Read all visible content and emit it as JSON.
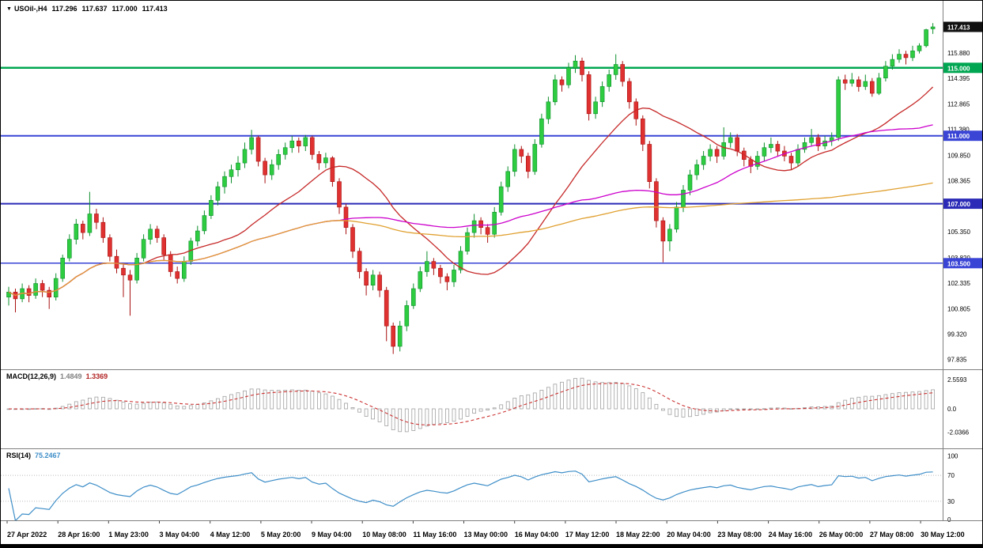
{
  "header": {
    "marker": "▼",
    "symbol_period": "USOil-,H4",
    "open": "117.296",
    "high": "117.637",
    "low": "117.000",
    "close": "117.413"
  },
  "colors": {
    "background": "#FFFFFF",
    "border": "#000000",
    "panel_divider": "#808080",
    "candle_up": "#2ECC40",
    "candle_up_edge": "#0E8F2E",
    "candle_down": "#E03131",
    "candle_down_edge": "#A81010",
    "ma_fast": "#C62828",
    "ma_medium": "#CC00CC",
    "ma_slow": "#E0A030",
    "macd_hist": "#A0A0A0",
    "macd_signal": "#CC3333",
    "rsi_line": "#3E8EC8",
    "rsi_level": "#BBBBBB",
    "axis_text": "#000000",
    "time_text": "#000000",
    "bottom_strip": "#000000"
  },
  "chart_data": [
    {
      "id": "price",
      "type": "candlestick",
      "symbol": "USOil-",
      "timeframe": "H4",
      "y_range": [
        97.435,
        118.95
      ],
      "grid": false,
      "hlines": [
        {
          "value": 115.0,
          "color": "#00A651",
          "width": 2.5
        },
        {
          "value": 111.0,
          "color": "#3A45D6",
          "width": 2
        },
        {
          "value": 107.0,
          "color": "#2B2BB8",
          "width": 2
        },
        {
          "value": 103.5,
          "color": "#3A45D6",
          "width": 1.5
        }
      ],
      "badges": [
        {
          "text": "117.413",
          "value": 117.413,
          "bg": "#111111"
        },
        {
          "text": "115.000",
          "value": 115.0,
          "bg": "#00A651"
        },
        {
          "text": "111.000",
          "value": 111.0,
          "bg": "#3A45D6"
        },
        {
          "text": "107.000",
          "value": 107.0,
          "bg": "#2B2BB8"
        },
        {
          "text": "103.500",
          "value": 103.5,
          "bg": "#3A45D6"
        }
      ],
      "axis_labels": [
        {
          "text": "115.880",
          "value": 115.88
        },
        {
          "text": "114.395",
          "value": 114.395
        },
        {
          "text": "112.865",
          "value": 112.865
        },
        {
          "text": "111.380",
          "value": 111.38
        },
        {
          "text": "109.850",
          "value": 109.85
        },
        {
          "text": "108.365",
          "value": 108.365
        },
        {
          "text": "105.350",
          "value": 105.35
        },
        {
          "text": "103.820",
          "value": 103.82
        },
        {
          "text": "102.335",
          "value": 102.335
        },
        {
          "text": "100.805",
          "value": 100.805
        },
        {
          "text": "99.320",
          "value": 99.32
        },
        {
          "text": "97.835",
          "value": 97.835
        }
      ],
      "moving_averages": [
        {
          "name": "ma-fast",
          "period": 21,
          "color": "#C62828"
        },
        {
          "name": "ma-medium",
          "period": 50,
          "color": "#CC00CC"
        },
        {
          "name": "ma-slow",
          "period": 200,
          "color": "#E0A030"
        }
      ],
      "x_labels": [
        "27 Apr 2022",
        "28 Apr 16:00",
        "1 May 23:00",
        "3 May 04:00",
        "4 May 12:00",
        "5 May 20:00",
        "9 May 04:00",
        "10 May 08:00",
        "11 May 16:00",
        "13 May 00:00",
        "16 May 04:00",
        "17 May 12:00",
        "18 May 22:00",
        "20 May 04:00",
        "23 May 08:00",
        "24 May 16:00",
        "26 May 00:00",
        "27 May 08:00",
        "30 May 12:00"
      ],
      "candles": [
        [
          101.5,
          102.1,
          101.0,
          101.8
        ],
        [
          101.8,
          102.0,
          100.6,
          101.4
        ],
        [
          101.4,
          102.3,
          101.2,
          102.0
        ],
        [
          102.0,
          102.2,
          101.2,
          101.6
        ],
        [
          101.6,
          102.6,
          101.4,
          102.3
        ],
        [
          102.3,
          102.5,
          101.5,
          101.9
        ],
        [
          101.9,
          102.1,
          100.8,
          101.5
        ],
        [
          101.5,
          102.9,
          101.3,
          102.6
        ],
        [
          102.6,
          104.0,
          102.4,
          103.8
        ],
        [
          103.8,
          105.2,
          103.6,
          104.9
        ],
        [
          104.9,
          106.1,
          104.6,
          105.8
        ],
        [
          105.8,
          106.0,
          104.9,
          105.3
        ],
        [
          105.3,
          107.7,
          105.1,
          106.4
        ],
        [
          106.4,
          106.7,
          105.5,
          105.9
        ],
        [
          105.9,
          106.2,
          104.7,
          105.0
        ],
        [
          105.0,
          105.2,
          103.6,
          103.9
        ],
        [
          103.9,
          104.3,
          102.9,
          103.2
        ],
        [
          103.2,
          103.5,
          101.5,
          102.8
        ],
        [
          102.8,
          103.1,
          100.4,
          102.5
        ],
        [
          102.5,
          104.1,
          102.3,
          103.8
        ],
        [
          103.8,
          105.2,
          103.6,
          104.9
        ],
        [
          104.9,
          105.8,
          104.6,
          105.5
        ],
        [
          105.5,
          105.7,
          104.7,
          105.0
        ],
        [
          105.0,
          105.2,
          103.7,
          104.0
        ],
        [
          104.0,
          104.2,
          102.7,
          103.0
        ],
        [
          103.0,
          103.3,
          102.3,
          102.6
        ],
        [
          102.6,
          103.9,
          102.4,
          103.6
        ],
        [
          103.6,
          105.0,
          103.4,
          104.8
        ],
        [
          104.8,
          105.7,
          104.5,
          105.4
        ],
        [
          105.4,
          106.6,
          105.2,
          106.3
        ],
        [
          106.3,
          107.5,
          106.1,
          107.2
        ],
        [
          107.2,
          108.3,
          106.9,
          108.0
        ],
        [
          108.0,
          108.9,
          107.6,
          108.6
        ],
        [
          108.6,
          109.3,
          108.2,
          109.0
        ],
        [
          109.0,
          109.8,
          108.6,
          109.4
        ],
        [
          109.4,
          110.6,
          109.1,
          110.2
        ],
        [
          110.2,
          111.35,
          109.9,
          110.9
        ],
        [
          110.9,
          111.0,
          109.2,
          109.5
        ],
        [
          109.5,
          109.7,
          108.2,
          108.7
        ],
        [
          108.7,
          109.6,
          108.4,
          109.3
        ],
        [
          109.3,
          110.2,
          109.0,
          109.9
        ],
        [
          109.9,
          110.6,
          109.6,
          110.3
        ],
        [
          110.3,
          111.0,
          110.0,
          110.7
        ],
        [
          110.7,
          110.9,
          110.0,
          110.4
        ],
        [
          110.4,
          111.05,
          110.1,
          110.9
        ],
        [
          110.9,
          111.0,
          109.6,
          109.9
        ],
        [
          109.9,
          110.1,
          109.0,
          109.4
        ],
        [
          109.4,
          110.0,
          109.1,
          109.7
        ],
        [
          109.7,
          109.8,
          108.0,
          108.3
        ],
        [
          108.3,
          108.5,
          106.4,
          106.8
        ],
        [
          106.8,
          107.0,
          105.2,
          105.6
        ],
        [
          105.6,
          105.8,
          103.8,
          104.2
        ],
        [
          104.2,
          104.4,
          102.6,
          103.0
        ],
        [
          103.0,
          103.2,
          101.6,
          102.2
        ],
        [
          102.2,
          103.1,
          101.9,
          102.8
        ],
        [
          102.8,
          103.0,
          101.5,
          101.9
        ],
        [
          101.9,
          102.1,
          98.9,
          99.8
        ],
        [
          99.8,
          100.0,
          98.15,
          98.6
        ],
        [
          98.6,
          100.1,
          98.3,
          99.8
        ],
        [
          99.8,
          101.3,
          99.5,
          101.0
        ],
        [
          101.0,
          102.3,
          100.8,
          102.0
        ],
        [
          102.0,
          103.3,
          101.8,
          103.0
        ],
        [
          103.0,
          104.2,
          102.7,
          103.6
        ],
        [
          103.6,
          103.8,
          102.8,
          103.2
        ],
        [
          103.2,
          103.4,
          102.3,
          102.7
        ],
        [
          102.7,
          102.9,
          101.9,
          102.4
        ],
        [
          102.4,
          103.4,
          102.1,
          103.1
        ],
        [
          103.1,
          104.5,
          102.9,
          104.2
        ],
        [
          104.2,
          105.6,
          104.0,
          105.3
        ],
        [
          105.3,
          106.4,
          105.0,
          106.0
        ],
        [
          106.0,
          106.2,
          105.2,
          105.6
        ],
        [
          105.6,
          105.8,
          104.7,
          105.2
        ],
        [
          105.2,
          106.8,
          105.0,
          106.5
        ],
        [
          106.5,
          108.3,
          106.3,
          108.0
        ],
        [
          108.0,
          109.2,
          107.7,
          108.9
        ],
        [
          108.9,
          110.5,
          108.6,
          110.2
        ],
        [
          110.2,
          110.4,
          109.4,
          109.8
        ],
        [
          109.8,
          110.0,
          108.5,
          108.9
        ],
        [
          108.9,
          110.8,
          108.7,
          110.5
        ],
        [
          110.5,
          112.3,
          110.3,
          112.0
        ],
        [
          112.0,
          113.3,
          111.7,
          113.0
        ],
        [
          113.0,
          114.6,
          112.8,
          114.3
        ],
        [
          114.3,
          114.5,
          113.6,
          114.0
        ],
        [
          114.0,
          115.3,
          113.8,
          115.0
        ],
        [
          115.0,
          115.75,
          114.7,
          115.4
        ],
        [
          115.4,
          115.6,
          114.2,
          114.6
        ],
        [
          114.6,
          114.8,
          111.9,
          112.3
        ],
        [
          112.3,
          113.3,
          112.0,
          113.0
        ],
        [
          113.0,
          114.2,
          112.7,
          113.9
        ],
        [
          113.9,
          114.9,
          113.6,
          114.6
        ],
        [
          114.6,
          115.8,
          114.3,
          115.2
        ],
        [
          115.2,
          115.4,
          113.9,
          114.2
        ],
        [
          114.2,
          114.4,
          112.6,
          113.0
        ],
        [
          113.0,
          113.2,
          111.6,
          112.0
        ],
        [
          112.0,
          112.2,
          110.1,
          110.5
        ],
        [
          110.5,
          110.7,
          107.9,
          108.3
        ],
        [
          108.3,
          108.5,
          105.6,
          106.0
        ],
        [
          106.0,
          106.2,
          103.55,
          104.8
        ],
        [
          104.8,
          105.8,
          104.2,
          105.5
        ],
        [
          105.5,
          107.1,
          105.3,
          106.8
        ],
        [
          106.8,
          108.1,
          106.5,
          107.8
        ],
        [
          107.8,
          109.0,
          107.5,
          108.7
        ],
        [
          108.7,
          109.6,
          108.4,
          109.3
        ],
        [
          109.3,
          110.1,
          109.0,
          109.8
        ],
        [
          109.8,
          110.5,
          109.5,
          110.2
        ],
        [
          110.2,
          110.4,
          109.4,
          109.8
        ],
        [
          109.8,
          111.5,
          109.6,
          110.6
        ],
        [
          110.6,
          111.2,
          110.3,
          110.9
        ],
        [
          110.9,
          111.1,
          109.8,
          110.1
        ],
        [
          110.1,
          110.3,
          109.2,
          109.6
        ],
        [
          109.6,
          109.8,
          108.8,
          109.2
        ],
        [
          109.2,
          110.1,
          109.0,
          109.8
        ],
        [
          109.8,
          110.6,
          109.5,
          110.3
        ],
        [
          110.3,
          110.9,
          110.0,
          110.5
        ],
        [
          110.5,
          110.7,
          109.8,
          110.1
        ],
        [
          110.1,
          110.4,
          109.5,
          109.8
        ],
        [
          109.8,
          110.0,
          109.0,
          109.4
        ],
        [
          109.4,
          110.5,
          109.2,
          110.2
        ],
        [
          110.2,
          110.9,
          110.0,
          110.6
        ],
        [
          110.6,
          111.4,
          110.4,
          110.9
        ],
        [
          110.9,
          111.1,
          110.1,
          110.4
        ],
        [
          110.4,
          111.0,
          110.2,
          110.7
        ],
        [
          110.7,
          111.2,
          110.4,
          110.9
        ],
        [
          110.9,
          114.5,
          110.7,
          114.3
        ],
        [
          114.3,
          114.6,
          113.7,
          114.1
        ],
        [
          114.1,
          114.7,
          113.9,
          114.3
        ],
        [
          114.3,
          114.5,
          113.6,
          113.9
        ],
        [
          113.9,
          114.6,
          113.7,
          114.2
        ],
        [
          114.2,
          114.4,
          113.3,
          113.5
        ],
        [
          113.5,
          114.7,
          113.4,
          114.4
        ],
        [
          114.4,
          115.4,
          114.2,
          115.1
        ],
        [
          115.1,
          115.8,
          114.9,
          115.5
        ],
        [
          115.5,
          116.1,
          115.3,
          115.8
        ],
        [
          115.8,
          116.0,
          115.2,
          115.6
        ],
        [
          115.6,
          116.3,
          115.4,
          116.0
        ],
        [
          116.0,
          116.45,
          115.85,
          116.3
        ],
        [
          116.3,
          117.3,
          116.2,
          117.25
        ],
        [
          117.296,
          117.637,
          117.0,
          117.413
        ]
      ]
    },
    {
      "id": "macd",
      "type": "bar",
      "label": "MACD(12,26,9)",
      "value_main": "1.4849",
      "value_signal": "1.3369",
      "fast": 12,
      "slow": 26,
      "signal": 9,
      "axis_labels": [
        {
          "text": "2.5593",
          "value": 2.5593
        },
        {
          "text": "0.0",
          "value": 0
        },
        {
          "text": "-2.0366",
          "value": -2.0366
        }
      ]
    },
    {
      "id": "rsi",
      "type": "line",
      "label": "RSI(14)",
      "value": "75.2467",
      "period": 14,
      "levels": [
        70,
        30
      ],
      "axis_labels": [
        {
          "text": "100",
          "value": 100
        },
        {
          "text": "70",
          "value": 70
        },
        {
          "text": "30",
          "value": 30
        },
        {
          "text": "0",
          "value": 0
        }
      ]
    }
  ]
}
